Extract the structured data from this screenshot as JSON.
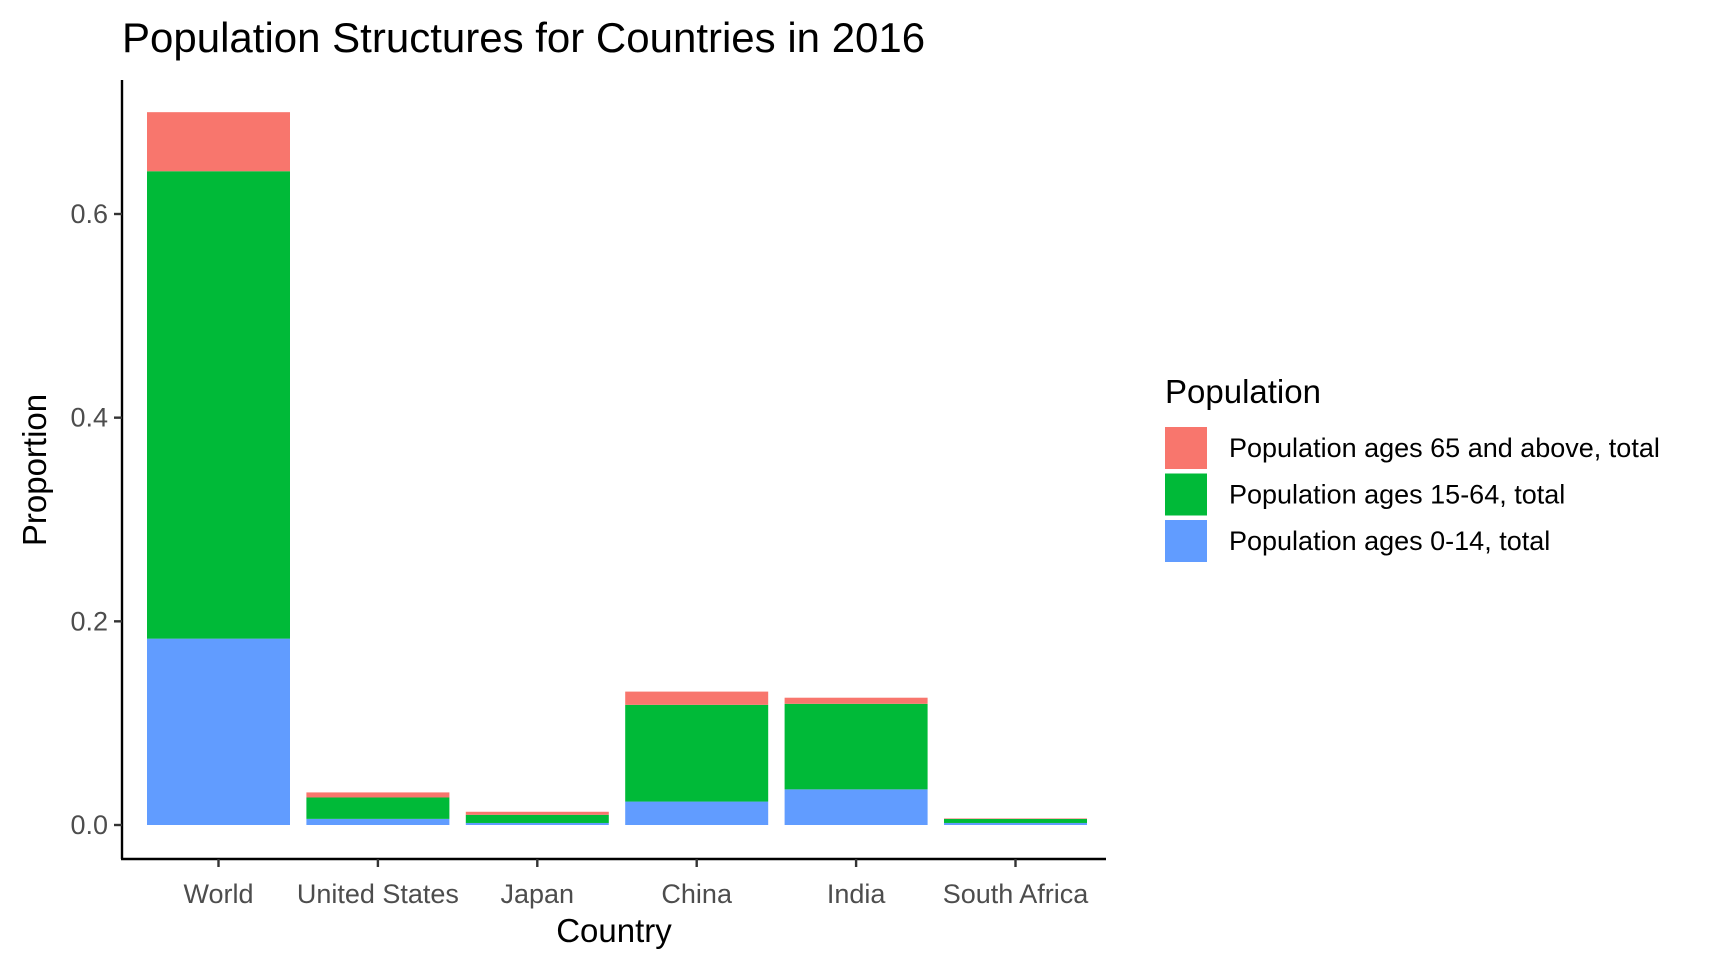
{
  "chart_data": {
    "type": "bar",
    "stacked": true,
    "title": "Population Structures for Countries in 2016",
    "xlabel": "Country",
    "ylabel": "Proportion",
    "categories": [
      "World",
      "United States",
      "Japan",
      "China",
      "India",
      "South Africa"
    ],
    "ylim": [
      0,
      0.7
    ],
    "yticks": [
      0.0,
      0.2,
      0.4,
      0.6
    ],
    "ytick_labels": [
      "0.0",
      "0.2",
      "0.4",
      "0.6"
    ],
    "grid": false,
    "legend": {
      "title": "Population",
      "placement": "right"
    },
    "series": [
      {
        "name": "Population ages 0-14, total",
        "color": "#619CFF",
        "values": [
          0.183,
          0.006,
          0.002,
          0.023,
          0.035,
          0.002
        ]
      },
      {
        "name": "Population ages 15-64, total",
        "color": "#00BA38",
        "values": [
          0.459,
          0.021,
          0.008,
          0.095,
          0.084,
          0.004
        ]
      },
      {
        "name": "Population ages 65 and above, total",
        "color": "#F8766D",
        "values": [
          0.058,
          0.005,
          0.003,
          0.013,
          0.006,
          0.0005
        ]
      }
    ],
    "legend_order": [
      2,
      1,
      0
    ]
  }
}
